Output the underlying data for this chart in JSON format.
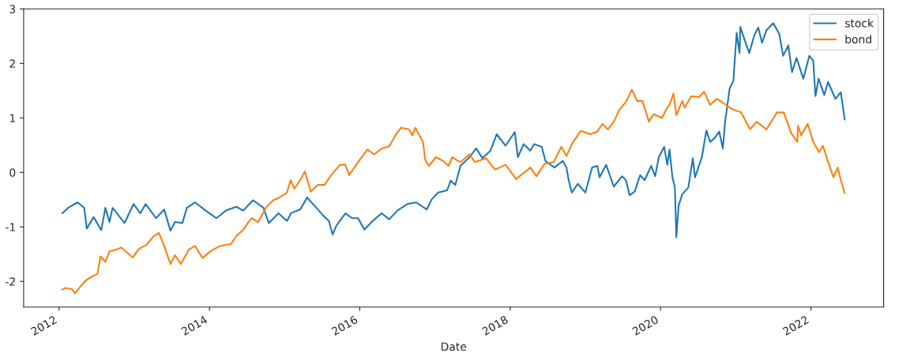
{
  "chart_data": {
    "type": "line",
    "xlabel": "Date",
    "xlim": [
      "2011-07-13",
      "2022-12-20"
    ],
    "ylim": [
      -2.47,
      3.0
    ],
    "xticks": [
      {
        "value": "2012",
        "label": "2012"
      },
      {
        "value": "2014",
        "label": "2014"
      },
      {
        "value": "2016",
        "label": "2016"
      },
      {
        "value": "2018",
        "label": "2018"
      },
      {
        "value": "2020",
        "label": "2020"
      },
      {
        "value": "2022",
        "label": "2022"
      }
    ],
    "yticks": [
      -2,
      -1,
      0,
      1,
      2,
      3
    ],
    "grid": false,
    "legend": "top right",
    "series": [
      {
        "name": "stock",
        "color": "#1f77b4",
        "x": [
          "2012-01-17",
          "2012-02-14",
          "2012-03-31",
          "2012-05-02",
          "2012-05-15",
          "2012-06-17",
          "2012-07-24",
          "2012-08-13",
          "2012-09-02",
          "2012-09-17",
          "2012-11-14",
          "2012-12-28",
          "2013-01-30",
          "2013-02-25",
          "2013-04-16",
          "2013-05-26",
          "2013-06-25",
          "2013-07-17",
          "2013-08-22",
          "2013-09-13",
          "2013-10-23",
          "2013-12-13",
          "2014-02-03",
          "2014-03-22",
          "2014-05-11",
          "2014-06-14",
          "2014-07-31",
          "2014-09-20",
          "2014-10-16",
          "2014-12-02",
          "2015-01-12",
          "2015-02-03",
          "2015-03-18",
          "2015-04-20",
          "2015-05-26",
          "2015-07-02",
          "2015-08-04",
          "2015-08-22",
          "2015-09-09",
          "2015-10-23",
          "2015-11-25",
          "2015-12-24",
          "2016-01-23",
          "2016-03-04",
          "2016-04-16",
          "2016-05-23",
          "2016-07-02",
          "2016-08-19",
          "2016-10-01",
          "2016-11-21",
          "2016-12-16",
          "2017-01-16",
          "2017-02-28",
          "2017-03-18",
          "2017-04-09",
          "2017-05-04",
          "2017-06-17",
          "2017-07-20",
          "2017-08-19",
          "2017-09-27",
          "2017-10-27",
          "2017-12-09",
          "2018-01-23",
          "2018-02-07",
          "2018-03-07",
          "2018-04-09",
          "2018-04-27",
          "2018-06-03",
          "2018-06-21",
          "2018-08-04",
          "2018-09-13",
          "2018-10-01",
          "2018-10-12",
          "2018-10-27",
          "2018-11-25",
          "2019-01-01",
          "2019-02-03",
          "2019-02-28",
          "2019-03-11",
          "2019-04-12",
          "2019-05-19",
          "2019-06-28",
          "2019-07-17",
          "2019-08-04",
          "2019-08-29",
          "2019-09-24",
          "2019-10-16",
          "2019-11-17",
          "2019-12-06",
          "2019-12-24",
          "2020-01-19",
          "2020-02-03",
          "2020-02-14",
          "2020-02-28",
          "2020-03-11",
          "2020-03-18",
          "2020-03-29",
          "2020-04-16",
          "2020-05-15",
          "2020-06-06",
          "2020-06-17",
          "2020-07-20",
          "2020-08-11",
          "2020-08-29",
          "2020-09-20",
          "2020-10-12",
          "2020-10-30",
          "2020-11-10",
          "2020-12-02",
          "2020-12-20",
          "2021-01-05",
          "2021-01-19",
          "2021-01-23",
          "2021-02-14",
          "2021-03-07",
          "2021-04-01",
          "2021-04-20",
          "2021-05-08",
          "2021-05-30",
          "2021-07-02",
          "2021-07-31",
          "2021-08-19",
          "2021-09-13",
          "2021-10-01",
          "2021-10-23",
          "2021-11-25",
          "2021-12-24",
          "2022-01-12",
          "2022-01-23",
          "2022-02-07",
          "2022-03-07",
          "2022-03-25",
          "2022-04-30",
          "2022-05-26",
          "2022-06-14"
        ],
        "values": [
          -0.75,
          -0.65,
          -0.55,
          -0.65,
          -1.03,
          -0.82,
          -1.06,
          -0.65,
          -0.91,
          -0.65,
          -0.93,
          -0.58,
          -0.75,
          -0.58,
          -0.84,
          -0.68,
          -1.07,
          -0.91,
          -0.93,
          -0.65,
          -0.55,
          -0.7,
          -0.84,
          -0.7,
          -0.63,
          -0.7,
          -0.51,
          -0.65,
          -0.93,
          -0.75,
          -0.89,
          -0.74,
          -0.68,
          -0.46,
          -0.61,
          -0.77,
          -0.89,
          -1.14,
          -0.98,
          -0.75,
          -0.84,
          -0.84,
          -1.05,
          -0.89,
          -0.75,
          -0.86,
          -0.7,
          -0.58,
          -0.55,
          -0.68,
          -0.49,
          -0.37,
          -0.33,
          -0.15,
          -0.23,
          0.12,
          0.28,
          0.44,
          0.26,
          0.4,
          0.7,
          0.49,
          0.74,
          0.28,
          0.52,
          0.4,
          0.52,
          0.47,
          0.21,
          0.09,
          0.21,
          0.09,
          -0.14,
          -0.37,
          -0.21,
          -0.37,
          0.09,
          0.12,
          -0.09,
          0.14,
          -0.26,
          -0.07,
          -0.14,
          -0.42,
          -0.35,
          -0.05,
          -0.14,
          0.12,
          -0.07,
          0.28,
          0.47,
          0.14,
          0.42,
          -0.09,
          -0.28,
          -1.19,
          -0.61,
          -0.4,
          -0.28,
          0.26,
          -0.09,
          0.28,
          0.77,
          0.56,
          0.63,
          0.75,
          0.44,
          0.93,
          1.54,
          1.68,
          2.56,
          2.19,
          2.67,
          2.42,
          2.19,
          2.52,
          2.66,
          2.38,
          2.61,
          2.74,
          2.54,
          2.14,
          2.33,
          1.84,
          2.1,
          1.72,
          2.14,
          2.05,
          1.4,
          1.72,
          1.42,
          1.66,
          1.35,
          1.47,
          0.97
        ]
      },
      {
        "name": "bond",
        "color": "#ff7f0e",
        "x": [
          "2012-01-16",
          "2012-02-01",
          "2012-03-04",
          "2012-03-18",
          "2012-05-04",
          "2012-05-30",
          "2012-07-06",
          "2012-07-20",
          "2012-08-13",
          "2012-09-02",
          "2012-10-01",
          "2012-10-30",
          "2012-12-24",
          "2013-01-23",
          "2013-02-28",
          "2013-04-05",
          "2013-04-30",
          "2013-05-26",
          "2013-06-25",
          "2013-07-17",
          "2013-08-15",
          "2013-09-24",
          "2013-10-23",
          "2013-11-28",
          "2014-01-08",
          "2014-02-21",
          "2014-04-16",
          "2014-05-11",
          "2014-06-14",
          "2014-07-06",
          "2014-07-24",
          "2014-08-26",
          "2014-10-01",
          "2014-11-06",
          "2014-12-02",
          "2015-01-12",
          "2015-01-30",
          "2015-02-17",
          "2015-03-18",
          "2015-04-09",
          "2015-05-08",
          "2015-06-10",
          "2015-07-13",
          "2015-08-15",
          "2015-09-27",
          "2015-10-23",
          "2015-11-10",
          "2015-12-24",
          "2016-02-07",
          "2016-03-11",
          "2016-04-16",
          "2016-05-23",
          "2016-06-25",
          "2016-07-20",
          "2016-08-26",
          "2016-09-13",
          "2016-09-27",
          "2016-11-03",
          "2016-11-14",
          "2016-12-02",
          "2017-01-05",
          "2017-02-10",
          "2017-03-07",
          "2017-03-25",
          "2017-04-13",
          "2017-05-04",
          "2017-06-17",
          "2017-07-13",
          "2017-09-06",
          "2017-10-19",
          "2017-12-09",
          "2018-01-30",
          "2018-04-09",
          "2018-05-08",
          "2018-06-17",
          "2018-07-31",
          "2018-09-06",
          "2018-10-01",
          "2018-10-30",
          "2018-12-09",
          "2019-01-27",
          "2019-02-28",
          "2019-03-25",
          "2019-04-20",
          "2019-05-19",
          "2019-06-14",
          "2019-07-20",
          "2019-08-15",
          "2019-09-09",
          "2019-10-05",
          "2019-11-06",
          "2019-11-28",
          "2020-01-08",
          "2020-02-03",
          "2020-02-14",
          "2020-03-04",
          "2020-03-18",
          "2020-04-16",
          "2020-04-27",
          "2020-05-30",
          "2020-07-06",
          "2020-07-31",
          "2020-08-29",
          "2020-10-01",
          "2020-10-30",
          "2020-12-09",
          "2021-01-27",
          "2021-03-11",
          "2021-04-12",
          "2021-05-30",
          "2021-07-20",
          "2021-08-22",
          "2021-09-27",
          "2021-10-27",
          "2021-10-30",
          "2021-11-14",
          "2021-12-16",
          "2022-01-12",
          "2022-02-10",
          "2022-02-28",
          "2022-03-22",
          "2022-04-20",
          "2022-05-11",
          "2022-05-26",
          "2022-06-14"
        ],
        "values": [
          -2.15,
          -2.12,
          -2.14,
          -2.22,
          -2.0,
          -1.93,
          -1.86,
          -1.54,
          -1.64,
          -1.45,
          -1.42,
          -1.38,
          -1.56,
          -1.4,
          -1.33,
          -1.17,
          -1.11,
          -1.35,
          -1.68,
          -1.52,
          -1.68,
          -1.41,
          -1.35,
          -1.57,
          -1.44,
          -1.35,
          -1.31,
          -1.17,
          -1.05,
          -0.93,
          -0.84,
          -0.91,
          -0.65,
          -0.51,
          -0.47,
          -0.37,
          -0.14,
          -0.3,
          -0.14,
          0.02,
          -0.35,
          -0.23,
          -0.23,
          -0.05,
          0.14,
          0.14,
          -0.05,
          0.19,
          0.42,
          0.33,
          0.44,
          0.48,
          0.7,
          0.82,
          0.79,
          0.68,
          0.82,
          0.56,
          0.23,
          0.12,
          0.28,
          0.21,
          0.12,
          0.28,
          0.23,
          0.19,
          0.33,
          0.19,
          0.26,
          0.05,
          0.14,
          -0.12,
          0.09,
          -0.07,
          0.16,
          0.19,
          0.47,
          0.3,
          0.54,
          0.76,
          0.7,
          0.75,
          0.89,
          0.79,
          0.93,
          1.14,
          1.31,
          1.52,
          1.31,
          1.31,
          0.93,
          1.07,
          1.0,
          1.19,
          1.24,
          1.45,
          1.05,
          1.31,
          1.19,
          1.4,
          1.38,
          1.48,
          1.24,
          1.35,
          1.28,
          1.17,
          1.1,
          0.79,
          0.93,
          0.79,
          1.1,
          1.1,
          0.72,
          0.56,
          0.86,
          0.68,
          0.89,
          0.56,
          0.37,
          0.49,
          0.23,
          -0.09,
          0.09,
          -0.14,
          -0.38
        ]
      }
    ]
  }
}
